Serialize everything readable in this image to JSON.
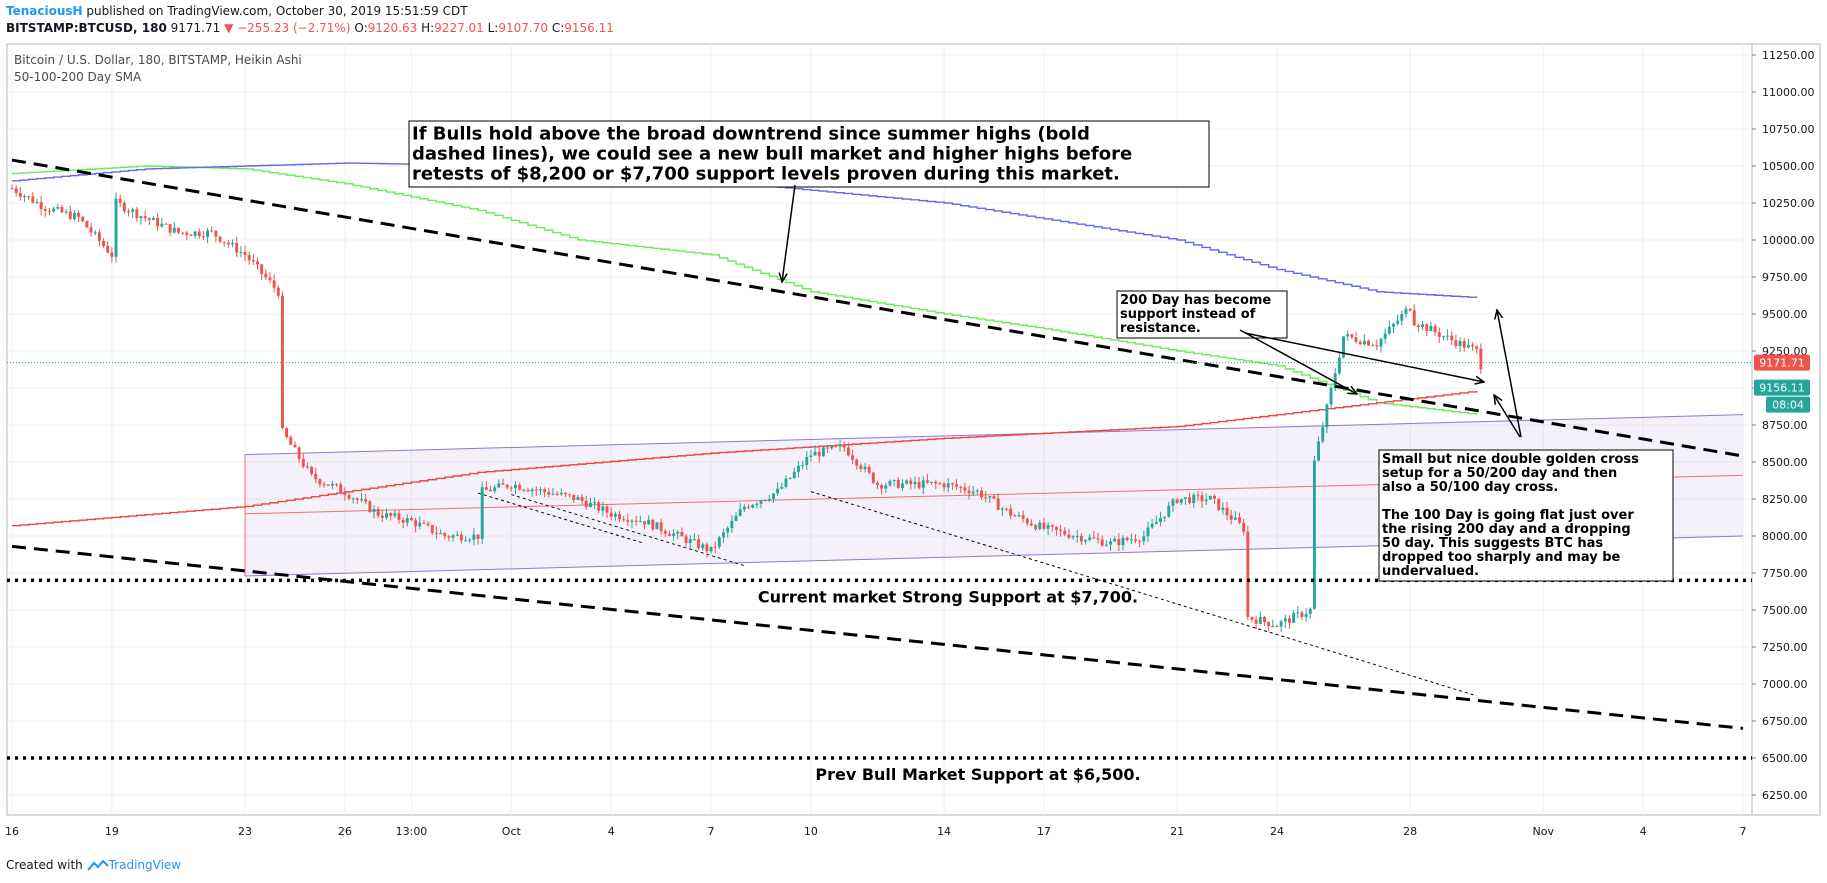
{
  "header": {
    "author": "TenaciousH",
    "published": "published on TradingView.com, October 30, 2019 15:51:59 CDT",
    "symbol": "BITSTAMP:BTCUSD, 180",
    "last": "9171.71",
    "change": "▼ −255.23 (−2.71%)",
    "o_label": "O:",
    "o": "9120.63",
    "h_label": "H:",
    "h": "9227.01",
    "l_label": "L:",
    "l": "9107.70",
    "c_label": "C:",
    "c": "9156.11"
  },
  "footer": {
    "created_with": "Created with",
    "brand": "TradingView"
  },
  "chart_data": {
    "type": "candlestick",
    "title": "Bitcoin / U.S. Dollar, 180, BITSTAMP, Heikin Ashi",
    "subtitle": "50-100-200 Day SMA",
    "ylim": [
      6000,
      11400
    ],
    "y_ticks": [
      6250,
      6500,
      6750,
      7000,
      7250,
      7500,
      7750,
      8000,
      8250,
      8500,
      8750,
      9000,
      9250,
      9500,
      9750,
      10000,
      10250,
      10500,
      10750,
      11000,
      11250
    ],
    "y_tick_labels": [
      "6250.00",
      "6500.00",
      "6750.00",
      "7000.00",
      "7250.00",
      "7500.00",
      "7750.00",
      "8000.00",
      "8250.00",
      "8500.00",
      "8750.00",
      "9000.00",
      "9250.00",
      "9500.00",
      "9750.00",
      "10000.00",
      "10250.00",
      "10500.00",
      "10750.00",
      "11000.00",
      "11250.00"
    ],
    "x_range": [
      "2019-09-16",
      "2019-11-07"
    ],
    "x_ticks": [
      {
        "date": "2019-09-16",
        "label": "16"
      },
      {
        "date": "2019-09-19",
        "label": "19"
      },
      {
        "date": "2019-09-23",
        "label": "23"
      },
      {
        "date": "2019-09-26",
        "label": "26"
      },
      {
        "date": "2019-09-28",
        "label": "13:00"
      },
      {
        "date": "2019-10-01",
        "label": "Oct"
      },
      {
        "date": "2019-10-04",
        "label": "4"
      },
      {
        "date": "2019-10-07",
        "label": "7"
      },
      {
        "date": "2019-10-10",
        "label": "10"
      },
      {
        "date": "2019-10-14",
        "label": "14"
      },
      {
        "date": "2019-10-17",
        "label": "17"
      },
      {
        "date": "2019-10-21",
        "label": "21"
      },
      {
        "date": "2019-10-24",
        "label": "24"
      },
      {
        "date": "2019-10-28",
        "label": "28"
      },
      {
        "date": "2019-11-01",
        "label": "Nov"
      },
      {
        "date": "2019-11-04",
        "label": "4"
      },
      {
        "date": "2019-11-07",
        "label": "7"
      }
    ],
    "price_path": [
      [
        "2019-09-16",
        10350
      ],
      [
        "2019-09-17",
        10220
      ],
      [
        "2019-09-18",
        10150
      ],
      [
        "2019-09-19",
        9900
      ],
      [
        "2019-09-19",
        10250
      ],
      [
        "2019-09-20",
        10150
      ],
      [
        "2019-09-21",
        10050
      ],
      [
        "2019-09-22",
        10050
      ],
      [
        "2019-09-23",
        9900
      ],
      [
        "2019-09-24",
        9650
      ],
      [
        "2019-09-24",
        8700
      ],
      [
        "2019-09-25",
        8400
      ],
      [
        "2019-09-26",
        8300
      ],
      [
        "2019-09-27",
        8150
      ],
      [
        "2019-09-28",
        8100
      ],
      [
        "2019-09-29",
        8000
      ],
      [
        "2019-09-30",
        8000
      ],
      [
        "2019-09-30",
        8300
      ],
      [
        "2019-10-01",
        8350
      ],
      [
        "2019-10-02",
        8300
      ],
      [
        "2019-10-03",
        8250
      ],
      [
        "2019-10-04",
        8150
      ],
      [
        "2019-10-05",
        8100
      ],
      [
        "2019-10-06",
        8000
      ],
      [
        "2019-10-07",
        7900
      ],
      [
        "2019-10-08",
        8200
      ],
      [
        "2019-10-09",
        8300
      ],
      [
        "2019-10-10",
        8550
      ],
      [
        "2019-10-11",
        8600
      ],
      [
        "2019-10-12",
        8350
      ],
      [
        "2019-10-13",
        8350
      ],
      [
        "2019-10-14",
        8350
      ],
      [
        "2019-10-15",
        8300
      ],
      [
        "2019-10-16",
        8150
      ],
      [
        "2019-10-17",
        8050
      ],
      [
        "2019-10-18",
        8000
      ],
      [
        "2019-10-19",
        7950
      ],
      [
        "2019-10-20",
        8000
      ],
      [
        "2019-10-21",
        8250
      ],
      [
        "2019-10-22",
        8250
      ],
      [
        "2019-10-23",
        8050
      ],
      [
        "2019-10-23",
        7450
      ],
      [
        "2019-10-24",
        7400
      ],
      [
        "2019-10-25",
        7500
      ],
      [
        "2019-10-25",
        8500
      ],
      [
        "2019-10-26",
        9350
      ],
      [
        "2019-10-27",
        9300
      ],
      [
        "2019-10-28",
        9550
      ],
      [
        "2019-10-28",
        9450
      ],
      [
        "2019-10-29",
        9350
      ],
      [
        "2019-10-30",
        9250
      ],
      [
        "2019-10-30",
        9156
      ]
    ],
    "sma": [
      {
        "name": "50 Day",
        "color": "#66ee55",
        "points": [
          [
            "2019-09-16",
            10450
          ],
          [
            "2019-09-20",
            10500
          ],
          [
            "2019-09-23",
            10480
          ],
          [
            "2019-09-26",
            10380
          ],
          [
            "2019-09-30",
            10200
          ],
          [
            "2019-10-03",
            10000
          ],
          [
            "2019-10-07",
            9900
          ],
          [
            "2019-10-10",
            9650
          ],
          [
            "2019-10-14",
            9500
          ],
          [
            "2019-10-17",
            9400
          ],
          [
            "2019-10-21",
            9250
          ],
          [
            "2019-10-24",
            9150
          ],
          [
            "2019-10-27",
            8900
          ],
          [
            "2019-10-30",
            8820
          ]
        ]
      },
      {
        "name": "100 Day",
        "color": "#6666ee",
        "points": [
          [
            "2019-09-16",
            10400
          ],
          [
            "2019-09-20",
            10480
          ],
          [
            "2019-09-26",
            10520
          ],
          [
            "2019-10-01",
            10500
          ],
          [
            "2019-10-07",
            10400
          ],
          [
            "2019-10-14",
            10250
          ],
          [
            "2019-10-21",
            10000
          ],
          [
            "2019-10-24",
            9800
          ],
          [
            "2019-10-27",
            9650
          ],
          [
            "2019-10-30",
            9610
          ]
        ]
      },
      {
        "name": "200 Day",
        "color": "#ee4444",
        "points": [
          [
            "2019-09-16",
            8070
          ],
          [
            "2019-09-23",
            8200
          ],
          [
            "2019-09-30",
            8430
          ],
          [
            "2019-10-07",
            8560
          ],
          [
            "2019-10-14",
            8660
          ],
          [
            "2019-10-21",
            8740
          ],
          [
            "2019-10-27",
            8900
          ],
          [
            "2019-10-30",
            8980
          ]
        ]
      }
    ],
    "last_price": {
      "value": 9171.71,
      "label": "9171.71",
      "color": "#ef5350"
    },
    "close_price": {
      "value": 9156.11,
      "label": "9156.11",
      "color": "#26a69a"
    },
    "countdown": "08:04",
    "support_lines": [
      {
        "value": 7700,
        "label": "Current market Strong Support at $7,700."
      },
      {
        "value": 6500,
        "label": "Prev Bull Market Support at $6,500."
      }
    ],
    "trend_lines": [
      {
        "from": [
          "2019-09-16",
          10540
        ],
        "to": [
          "2019-11-07",
          8540
        ]
      },
      {
        "from": [
          "2019-09-16",
          7930
        ],
        "to": [
          "2019-11-07",
          6700
        ]
      }
    ],
    "channel": {
      "upper": {
        "from": [
          "2019-09-23",
          8550
        ],
        "to": [
          "2019-11-07",
          8820
        ]
      },
      "middle": {
        "from": [
          "2019-09-23",
          8150
        ],
        "to": [
          "2019-11-07",
          8410
        ]
      },
      "lower": {
        "from": [
          "2019-09-23",
          7730
        ],
        "to": [
          "2019-11-07",
          8000
        ]
      }
    },
    "annotations": [
      {
        "name": "bulls",
        "lines": [
          "If Bulls hold above the broad downtrend since summer highs (bold",
          "dashed lines), we could see a new bull market and higher highs before",
          "retests of $8,200 or $7,700 support levels proven during this market."
        ]
      },
      {
        "name": "200-day",
        "lines": [
          "200 Day has become",
          "support instead of",
          "resistance."
        ]
      },
      {
        "name": "golden-cross",
        "lines": [
          "Small but nice double golden cross",
          "setup for a 50/200 day and then",
          "also a 50/100 day cross.",
          "",
          "The 100 Day is going flat just over",
          "the rising 200 day and a dropping",
          "50 day. This suggests BTC has",
          "dropped too sharply and may be",
          "undervalued."
        ]
      }
    ]
  }
}
